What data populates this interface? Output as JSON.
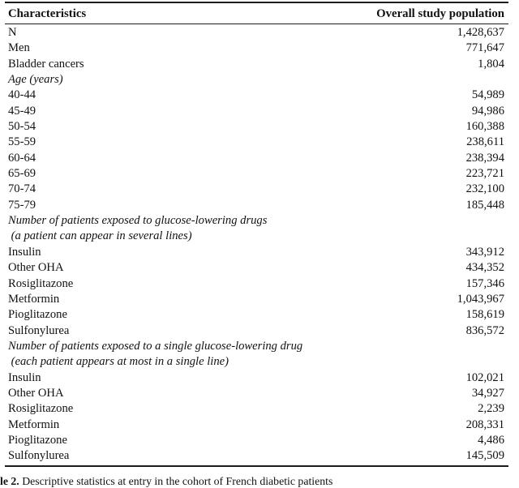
{
  "page": {
    "background_color": "#ffffff",
    "text_color": "#111111",
    "rule_color": "#1c1c1c"
  },
  "table": {
    "header": {
      "characteristics": "Characteristics",
      "population": "Overall study population"
    },
    "rows": [
      {
        "kind": "data",
        "label": "N",
        "value": "1,428,637"
      },
      {
        "kind": "data",
        "label": "Men",
        "value": "771,647"
      },
      {
        "kind": "data",
        "label": "Bladder cancers",
        "value": "1,804"
      },
      {
        "kind": "section",
        "label": "Age (years)",
        "value": ""
      },
      {
        "kind": "data",
        "label": "40-44",
        "value": "54,989"
      },
      {
        "kind": "data",
        "label": "45-49",
        "value": "94,986"
      },
      {
        "kind": "data",
        "label": "50-54",
        "value": "160,388"
      },
      {
        "kind": "data",
        "label": "55-59",
        "value": "238,611"
      },
      {
        "kind": "data",
        "label": "60-64",
        "value": "238,394"
      },
      {
        "kind": "data",
        "label": "65-69",
        "value": "223,721"
      },
      {
        "kind": "data",
        "label": "70-74",
        "value": "232,100"
      },
      {
        "kind": "data",
        "label": "75-79",
        "value": "185,448"
      },
      {
        "kind": "section",
        "label": "Number of patients exposed to glucose-lowering drugs",
        "value": ""
      },
      {
        "kind": "section",
        "label": " (a patient can appear in several lines)",
        "value": ""
      },
      {
        "kind": "data",
        "label": "Insulin",
        "value": "343,912"
      },
      {
        "kind": "data",
        "label": "Other OHA",
        "value": "434,352"
      },
      {
        "kind": "data",
        "label": "Rosiglitazone",
        "value": "157,346"
      },
      {
        "kind": "data",
        "label": "Metformin",
        "value": "1,043,967"
      },
      {
        "kind": "data",
        "label": "Pioglitazone",
        "value": "158,619"
      },
      {
        "kind": "data",
        "label": "Sulfonylurea",
        "value": "836,572"
      },
      {
        "kind": "section",
        "label": "Number of patients exposed to a single glucose-lowering drug",
        "value": ""
      },
      {
        "kind": "section",
        "label": " (each patient appears at most in a single line)",
        "value": ""
      },
      {
        "kind": "data",
        "label": "Insulin",
        "value": "102,021"
      },
      {
        "kind": "data",
        "label": "Other OHA",
        "value": "34,927"
      },
      {
        "kind": "data",
        "label": "Rosiglitazone",
        "value": "2,239"
      },
      {
        "kind": "data",
        "label": "Metformin",
        "value": "208,331"
      },
      {
        "kind": "data",
        "label": "Pioglitazone",
        "value": "4,486"
      },
      {
        "kind": "data",
        "label": "Sulfonylurea",
        "value": "145,509"
      }
    ]
  },
  "caption": {
    "prefix": "le 2.",
    "text": " Descriptive statistics at entry in the cohort of French diabetic patients"
  }
}
